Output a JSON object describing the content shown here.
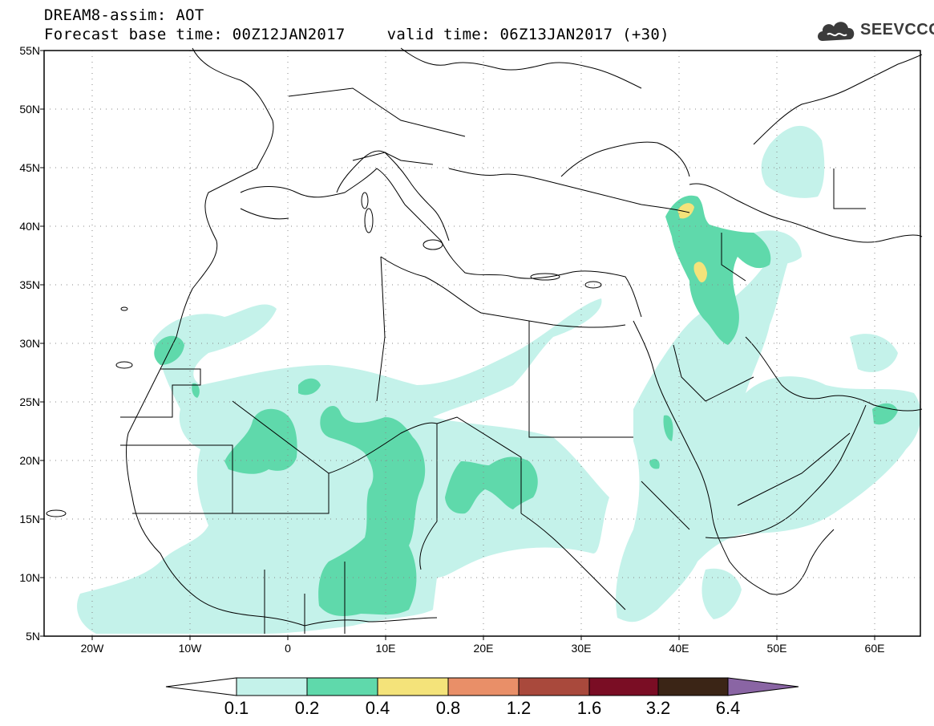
{
  "title": {
    "line1": "DREAM8-assim: AOT",
    "base_time": "Forecast base time: 00Z12JAN2017",
    "valid_time": "valid time: 06Z13JAN2017 (+30)"
  },
  "logo": {
    "text": "SEEVCCC",
    "icon": "cloud-icon"
  },
  "map": {
    "lat_labels": [
      "55N",
      "50N",
      "45N",
      "40N",
      "35N",
      "30N",
      "25N",
      "20N",
      "15N",
      "10N",
      "5N"
    ],
    "lon_labels": [
      "20W",
      "10W",
      "0",
      "10E",
      "20E",
      "30E",
      "40E",
      "50E",
      "60E"
    ],
    "gridlines": "dotted"
  },
  "colorbar": {
    "labels": [
      "0.1",
      "0.2",
      "0.4",
      "0.8",
      "1.2",
      "1.6",
      "3.2",
      "6.4"
    ],
    "colors": [
      "#ffffff",
      "#c4f2ea",
      "#5fd9ab",
      "#f4e37a",
      "#e98f68",
      "#a9493c",
      "#7a0d24",
      "#3b2516",
      "#8a65a4"
    ]
  },
  "colors": {
    "light": "#c4f2ea",
    "medium": "#5fd9ab",
    "high": "#f4e37a"
  }
}
